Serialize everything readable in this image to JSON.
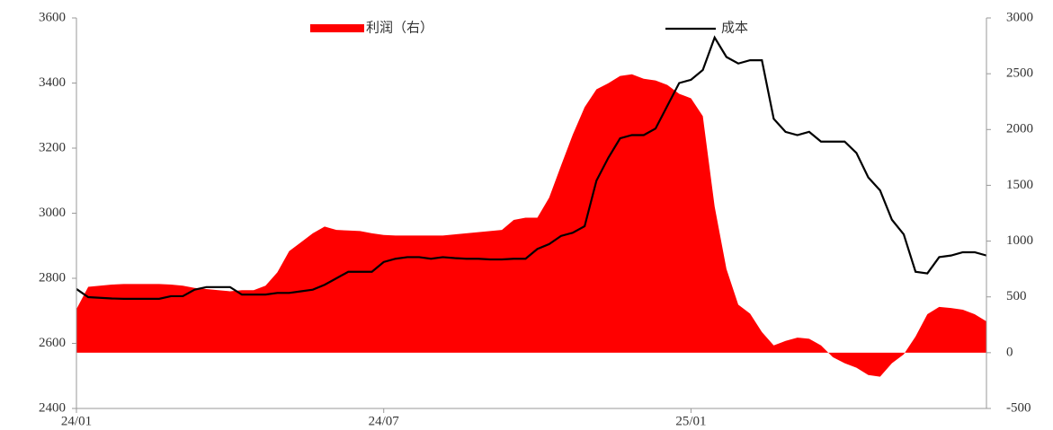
{
  "chart_data": {
    "type": "combo",
    "categories": [
      "24/01",
      null,
      null,
      null,
      null,
      null,
      null,
      null,
      null,
      null,
      null,
      null,
      null,
      null,
      null,
      null,
      null,
      null,
      null,
      null,
      null,
      null,
      null,
      null,
      null,
      null,
      "24/07",
      null,
      null,
      null,
      null,
      null,
      null,
      null,
      null,
      null,
      null,
      null,
      null,
      null,
      null,
      null,
      null,
      null,
      null,
      null,
      null,
      null,
      null,
      null,
      null,
      null,
      "25/01",
      null,
      null,
      null,
      null,
      null,
      null,
      null,
      null,
      null,
      null,
      null,
      null,
      null,
      null,
      null,
      null,
      null,
      null,
      null,
      null,
      null,
      null,
      null,
      null,
      null
    ],
    "series": [
      {
        "name": "利润（右）",
        "type": "area",
        "axis": "y2",
        "color": "#ff0000",
        "values": [
          390,
          590,
          600,
          610,
          615,
          615,
          615,
          615,
          610,
          600,
          580,
          570,
          560,
          550,
          560,
          560,
          600,
          720,
          910,
          990,
          1070,
          1130,
          1100,
          1095,
          1090,
          1070,
          1055,
          1050,
          1050,
          1050,
          1050,
          1050,
          1060,
          1070,
          1080,
          1090,
          1100,
          1190,
          1210,
          1210,
          1390,
          1675,
          1955,
          2200,
          2360,
          2415,
          2480,
          2495,
          2455,
          2440,
          2400,
          2320,
          2280,
          2120,
          1310,
          750,
          430,
          350,
          185,
          65,
          105,
          135,
          125,
          65,
          -40,
          -95,
          -135,
          -200,
          -215,
          -95,
          -15,
          145,
          345,
          410,
          400,
          385,
          345,
          280
        ]
      },
      {
        "name": "成本",
        "type": "line",
        "axis": "y",
        "color": "#000000",
        "values": [
          2767,
          2742,
          2740,
          2738,
          2737,
          2737,
          2737,
          2737,
          2745,
          2745,
          2765,
          2773,
          2773,
          2773,
          2750,
          2750,
          2750,
          2755,
          2755,
          2760,
          2765,
          2780,
          2800,
          2820,
          2820,
          2820,
          2850,
          2860,
          2865,
          2865,
          2860,
          2865,
          2862,
          2860,
          2860,
          2858,
          2858,
          2860,
          2860,
          2890,
          2905,
          2930,
          2940,
          2960,
          3100,
          3170,
          3230,
          3240,
          3240,
          3260,
          3330,
          3400,
          3410,
          3440,
          3540,
          3480,
          3460,
          3470,
          3470,
          3290,
          3250,
          3240,
          3250,
          3220,
          3220,
          3220,
          3185,
          3110,
          3070,
          2980,
          2935,
          2820,
          2815,
          2865,
          2870,
          2880,
          2880,
          2870
        ]
      }
    ],
    "ylim": [
      2400,
      3600
    ],
    "yticks": [
      2400,
      2600,
      2800,
      3000,
      3200,
      3400,
      3600
    ],
    "y2lim": [
      -500,
      3000
    ],
    "y2ticks": [
      -500,
      0,
      500,
      1000,
      1500,
      2000,
      2500,
      3000
    ]
  }
}
